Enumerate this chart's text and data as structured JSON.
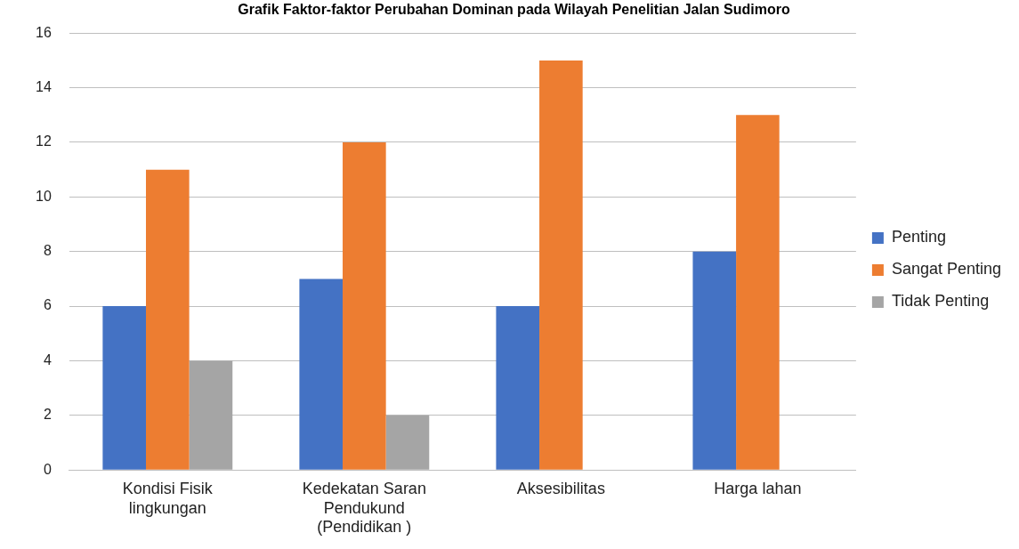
{
  "chart_data": {
    "type": "bar",
    "title": "Grafik Faktor-faktor Perubahan Dominan pada Wilayah Penelitian Jalan Sudimoro",
    "categories": [
      "Kondisi Fisik lingkungan",
      "Kedekatan Saran Pendukund (Pendidikan )",
      "Aksesibilitas",
      "Harga lahan"
    ],
    "series": [
      {
        "name": "Penting",
        "color": "#4472c4",
        "values": [
          6,
          7,
          6,
          8
        ]
      },
      {
        "name": "Sangat Penting",
        "color": "#ed7d31",
        "values": [
          11,
          12,
          15,
          13
        ]
      },
      {
        "name": "Tidak Penting",
        "color": "#a5a5a5",
        "values": [
          4,
          2,
          0,
          0
        ]
      }
    ],
    "ylim": [
      0,
      16
    ],
    "yticks": [
      0,
      2,
      4,
      6,
      8,
      10,
      12,
      14,
      16
    ],
    "grid": "y",
    "legend": "right"
  }
}
